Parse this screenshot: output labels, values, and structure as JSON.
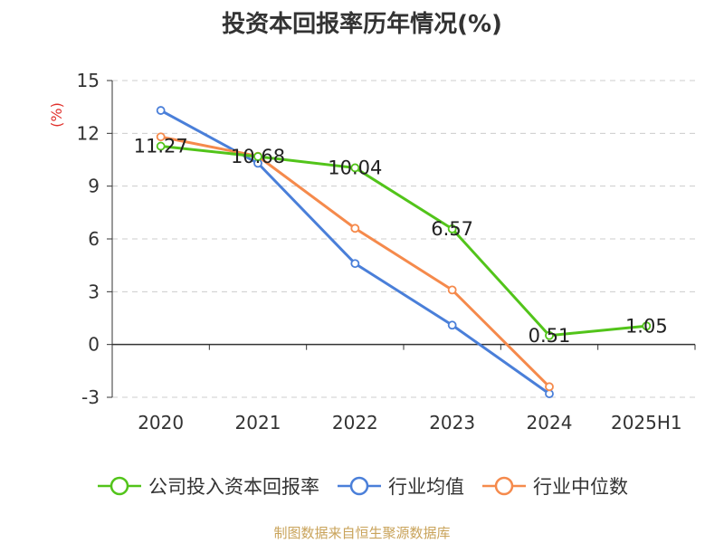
{
  "title": "投资本回报率历年情况(%)",
  "source": "制图数据来自恒生聚源数据库",
  "colors": {
    "company": "#52c41a",
    "industry_avg": "#4a7fd9",
    "industry_median": "#f58a4c",
    "axis": "#333333",
    "grid": "#cccccc",
    "ylabel": "#e0302c"
  },
  "chart_data": {
    "type": "line",
    "title": "投资本回报率历年情况(%)",
    "xlabel": "",
    "ylabel": "(%)",
    "categories": [
      "2020",
      "2021",
      "2022",
      "2023",
      "2024",
      "2025H1"
    ],
    "ylim": [
      -3,
      15
    ],
    "yticks": [
      -3,
      0,
      3,
      6,
      9,
      12,
      15
    ],
    "grid": true,
    "legend_position": "bottom",
    "series": [
      {
        "name": "公司投入资本回报率",
        "color_key": "company",
        "values": [
          11.27,
          10.68,
          10.04,
          6.57,
          0.51,
          1.05
        ],
        "data_labels": [
          "11.27",
          "10.68",
          "10.04",
          "6.57",
          "0.51",
          "1.05"
        ]
      },
      {
        "name": "行业均值",
        "color_key": "industry_avg",
        "values": [
          13.3,
          10.3,
          4.6,
          1.1,
          -2.8,
          null
        ]
      },
      {
        "name": "行业中位数",
        "color_key": "industry_median",
        "values": [
          11.8,
          10.7,
          6.6,
          3.1,
          -2.4,
          null
        ]
      }
    ]
  }
}
